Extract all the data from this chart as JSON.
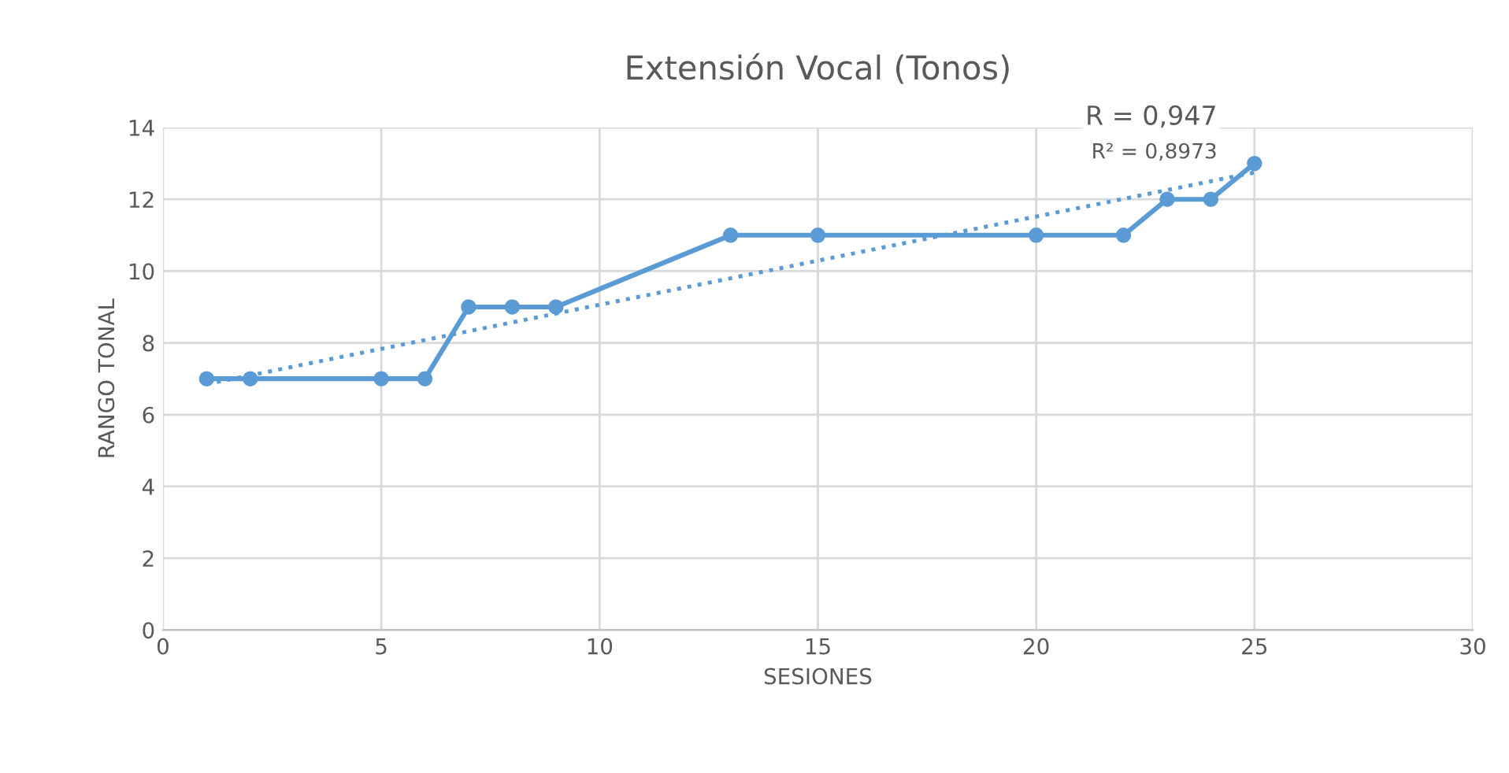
{
  "chart_data": {
    "type": "line",
    "title": "Extensión Vocal (Tonos)",
    "xlabel": "SESIONES",
    "ylabel": "RANGO TONAL",
    "series": [
      {
        "color": "#5b9bd5",
        "marker": "circle",
        "line_style": "solid",
        "x": [
          1,
          2,
          5,
          6,
          7,
          8,
          9,
          13,
          15,
          20,
          22,
          23,
          24,
          25
        ],
        "values": [
          7,
          7,
          7,
          7,
          9,
          9,
          9,
          11,
          11,
          11,
          11,
          12,
          12,
          13
        ]
      },
      {
        "color": "#5b9bd5",
        "marker": "none",
        "line_style": "dotted",
        "x": [
          1,
          25
        ],
        "values": [
          6.85,
          12.75
        ]
      }
    ],
    "annotations": [
      "R = 0,947",
      "R² = 0,8973"
    ],
    "xlim": [
      0,
      30
    ],
    "xticks": [
      0,
      5,
      10,
      15,
      20,
      25,
      30
    ],
    "ylim": [
      0,
      14
    ],
    "yticks": [
      0,
      2,
      4,
      6,
      8,
      10,
      12,
      14
    ],
    "grid": true,
    "legend": false
  }
}
